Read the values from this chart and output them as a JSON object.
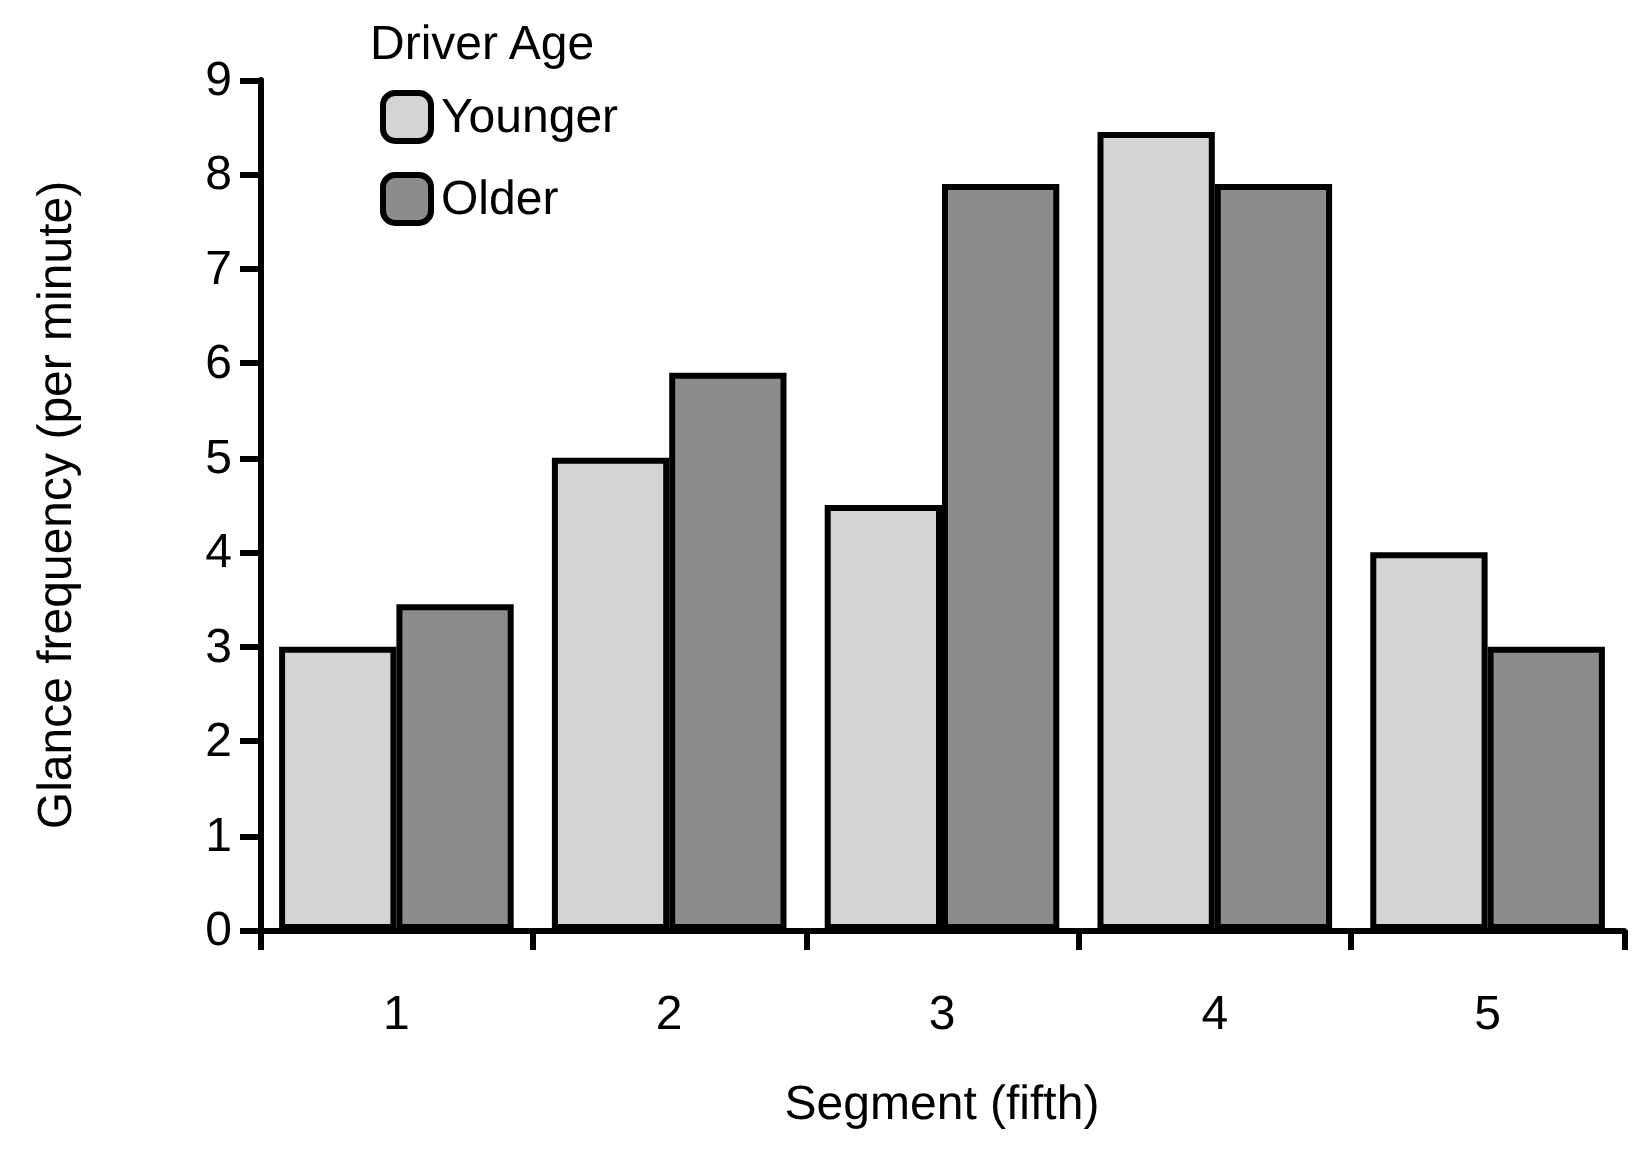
{
  "chart_data": {
    "type": "bar",
    "xlabel": "Segment (fifth)",
    "ylabel": "Glance frequency (per minute)",
    "legend_title": "Driver Age",
    "categories": [
      "1",
      "2",
      "3",
      "4",
      "5"
    ],
    "series": [
      {
        "name": "Younger",
        "color": "#d4d4d4",
        "values": [
          3.0,
          5.0,
          4.5,
          8.45,
          4.0
        ]
      },
      {
        "name": "Older",
        "color": "#8c8c8c",
        "values": [
          3.45,
          5.9,
          7.9,
          7.9,
          3.0
        ]
      }
    ],
    "ylim": [
      0,
      9
    ],
    "yticks": [
      0,
      1,
      2,
      3,
      4,
      5,
      6,
      7,
      8,
      9
    ],
    "grid": false,
    "legend": "top left"
  }
}
